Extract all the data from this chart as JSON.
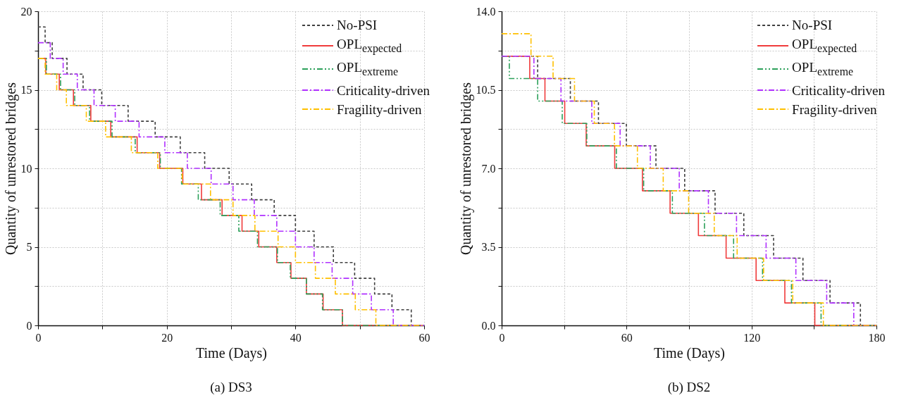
{
  "chart_data": [
    {
      "type": "step",
      "title": "(a) DS3",
      "xlabel": "Time (Days)",
      "ylabel": "Quantity of unrestored bridges",
      "xlim": [
        0,
        60
      ],
      "ylim": [
        0,
        20
      ],
      "xticks": [
        0,
        {
          "value": 10,
          "label": null
        },
        20,
        {
          "value": 30,
          "label": null
        },
        40,
        {
          "value": 50,
          "label": null
        },
        60
      ],
      "yticks": [
        0,
        {
          "value": 2.5,
          "label": null
        },
        5,
        {
          "value": 7.5,
          "label": null
        },
        10,
        {
          "value": 12.5,
          "label": null
        },
        15,
        {
          "value": 17.5,
          "label": null
        },
        20
      ],
      "grid": true,
      "legend": "top right",
      "series": [
        {
          "name": "No-PSI",
          "color": "#404040",
          "line_style": "dashed",
          "x": [
            0,
            1.1,
            2.2,
            4.5,
            7.0,
            9.9,
            14.0,
            18.2,
            22.1,
            25.9,
            29.7,
            33.2,
            36.7,
            40.0,
            42.9,
            45.9,
            49.2,
            52.3,
            55.0,
            58.0,
            60
          ],
          "values": [
            19,
            18,
            17,
            16,
            15,
            14,
            13,
            12,
            11,
            10,
            9,
            8,
            7,
            6,
            5,
            4,
            3,
            2,
            1,
            0,
            0
          ]
        },
        {
          "name": "OPL$_{expected}$",
          "color": "#f03c3c",
          "line_style": "solid",
          "x": [
            0,
            1.2,
            3.3,
            5.5,
            8.2,
            11.3,
            15.4,
            18.9,
            22.5,
            25.4,
            28.6,
            31.7,
            34.3,
            37.1,
            39.3,
            41.7,
            44.3,
            47.3,
            60
          ],
          "values": [
            17,
            16,
            15,
            14,
            13,
            12,
            11,
            10,
            9,
            8,
            7,
            6,
            5,
            4,
            3,
            2,
            1,
            0,
            0
          ]
        },
        {
          "name": "OPL$_{extreme}$",
          "color": "#2ca05a",
          "line_style": "dashdotdot",
          "x": [
            0,
            1.3,
            3.5,
            5.7,
            8.0,
            11.5,
            15.1,
            19.0,
            22.3,
            24.9,
            28.3,
            31.2,
            34.1,
            37.2,
            39.2,
            41.7,
            44.2,
            47.3,
            60
          ],
          "values": [
            17,
            16,
            15,
            14,
            13,
            12,
            11,
            10,
            9,
            8,
            7,
            6,
            5,
            4,
            3,
            2,
            1,
            0,
            0
          ]
        },
        {
          "name": "Criticality-driven",
          "color": "#b030ff",
          "line_style": "dashdot",
          "x": [
            0,
            1.9,
            3.9,
            6.1,
            8.7,
            12.0,
            15.7,
            19.7,
            23.2,
            26.9,
            30.3,
            33.6,
            37.1,
            40.0,
            42.9,
            45.7,
            48.9,
            51.8,
            55.2,
            60
          ],
          "values": [
            18,
            17,
            16,
            15,
            14,
            13,
            12,
            11,
            10,
            9,
            8,
            7,
            6,
            5,
            4,
            3,
            2,
            1,
            0,
            0
          ]
        },
        {
          "name": "Fragility-driven",
          "color": "#ffc000",
          "line_style": "dashdot",
          "x": [
            0,
            1.1,
            2.9,
            4.4,
            7.5,
            10.5,
            14.5,
            18.6,
            22.4,
            26.8,
            30.3,
            33.7,
            37.3,
            40.0,
            43.1,
            46.2,
            49.3,
            52.5,
            60
          ],
          "values": [
            17,
            16,
            15,
            14,
            13,
            12,
            11,
            10,
            9,
            8,
            7,
            6,
            5,
            4,
            3,
            2,
            1,
            0,
            0
          ]
        }
      ]
    },
    {
      "type": "step",
      "title": "(b) DS2",
      "xlabel": "Time (Days)",
      "ylabel": "Quantity of unrestored bridges",
      "xlim": [
        0,
        180
      ],
      "ylim": [
        0,
        14
      ],
      "xticks": [
        0,
        {
          "value": 30,
          "label": null
        },
        60,
        {
          "value": 90,
          "label": null
        },
        120,
        {
          "value": 150,
          "label": null
        },
        180
      ],
      "yticks": [
        {
          "value": 0,
          "label": "0.0"
        },
        {
          "value": 1.75,
          "label": null
        },
        {
          "value": 3.5,
          "label": "3.5"
        },
        {
          "value": 5.25,
          "label": null
        },
        {
          "value": 7,
          "label": "7.0"
        },
        {
          "value": 8.75,
          "label": null
        },
        {
          "value": 10.5,
          "label": "10.5"
        },
        {
          "value": 12.25,
          "label": null
        },
        {
          "value": 14,
          "label": "14.0"
        }
      ],
      "grid": true,
      "legend": "top right",
      "series": [
        {
          "name": "No-PSI",
          "color": "#404040",
          "line_style": "dashed",
          "x": [
            0,
            17.3,
            33.0,
            46.5,
            59.9,
            74.1,
            87.9,
            102.5,
            116.3,
            130.6,
            144.7,
            157.7,
            172.3,
            180
          ],
          "values": [
            12,
            11,
            10,
            9,
            8,
            7,
            6,
            5,
            4,
            3,
            2,
            1,
            0,
            0
          ]
        },
        {
          "name": "OPL$_{expected}$",
          "color": "#f03c3c",
          "line_style": "solid",
          "x": [
            0,
            13.5,
            20.8,
            30.3,
            40.6,
            54.3,
            67.6,
            80.9,
            94.5,
            107.8,
            122.2,
            136.0,
            150.4,
            180
          ],
          "values": [
            12,
            11,
            10,
            9,
            8,
            7,
            6,
            5,
            4,
            3,
            2,
            1,
            0,
            0
          ]
        },
        {
          "name": "OPL$_{extreme}$",
          "color": "#2ca05a",
          "line_style": "dashdotdot",
          "x": [
            0,
            3.7,
            17.3,
            29.1,
            40.9,
            55.1,
            68.2,
            82.0,
            97.4,
            111.4,
            125.3,
            139.2,
            153.4,
            180
          ],
          "values": [
            12,
            11,
            10,
            9,
            8,
            7,
            6,
            5,
            4,
            3,
            2,
            1,
            0,
            0
          ]
        },
        {
          "name": "Criticality-driven",
          "color": "#b030ff",
          "line_style": "dashdot",
          "x": [
            0,
            15.5,
            28.5,
            43.3,
            56.9,
            71.4,
            85.3,
            99.3,
            112.8,
            127.0,
            141.3,
            156.1,
            169.1,
            180
          ],
          "values": [
            12,
            11,
            10,
            9,
            8,
            7,
            6,
            5,
            4,
            3,
            2,
            1,
            0,
            0
          ]
        },
        {
          "name": "Fragility-driven",
          "color": "#ffc000",
          "line_style": "dashdot",
          "x": [
            0,
            14.1,
            24.7,
            35.0,
            44.5,
            54.2,
            65.2,
            77.6,
            89.8,
            102.1,
            113.1,
            125.8,
            139.8,
            154.5,
            180
          ],
          "values": [
            13,
            12,
            11,
            10,
            9,
            8,
            7,
            6,
            5,
            4,
            3,
            2,
            1,
            0,
            0
          ]
        }
      ]
    }
  ]
}
